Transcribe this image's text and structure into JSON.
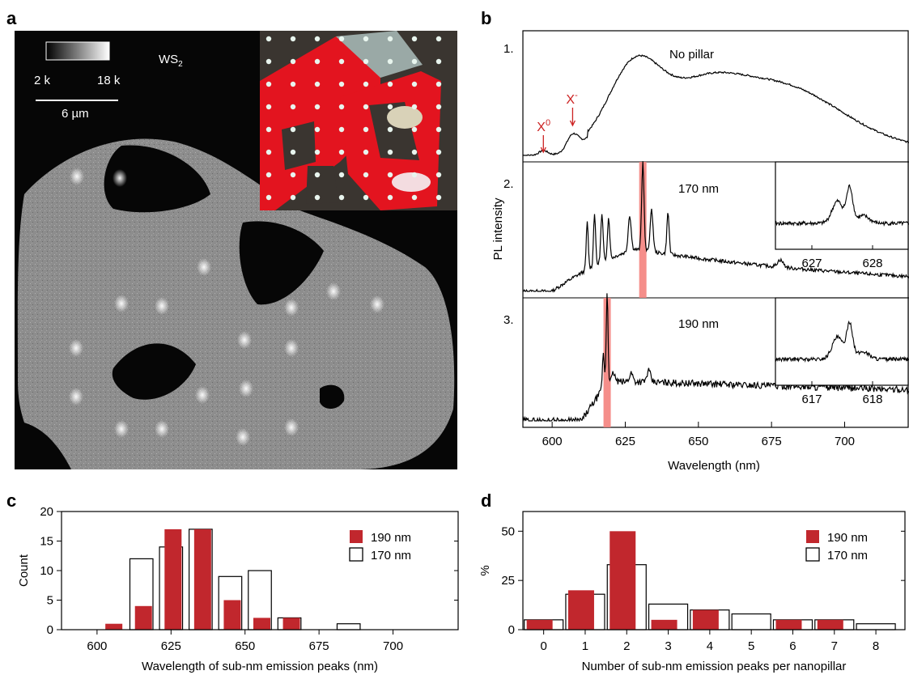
{
  "panel_labels": {
    "a": "a",
    "b": "b",
    "c": "c",
    "d": "d"
  },
  "panel_a": {
    "material": "WS",
    "material_subscript": "2",
    "colorbar_min": "2 k",
    "colorbar_max": "18 k",
    "scale_bar": "6 µm"
  },
  "panel_b": {
    "ylabel": "PL intensity",
    "xlabel": "Wavelength (nm)",
    "x_ticks": [
      600,
      625,
      650,
      675,
      700
    ],
    "xlim": [
      590,
      722
    ],
    "spectra": [
      {
        "index": "1.",
        "label": "No pillar",
        "peaks": [
          {
            "text": "X",
            "sup": "0"
          },
          {
            "text": "X",
            "sup": "-"
          }
        ]
      },
      {
        "index": "2.",
        "label": "170 nm",
        "highlight_nm": 631,
        "inset": {
          "xlim": [
            626.4,
            628.6
          ],
          "ticks": [
            "627",
            "628"
          ]
        }
      },
      {
        "index": "3.",
        "label": "190 nm",
        "highlight_nm": 618.8,
        "inset": {
          "xlim": [
            616.4,
            618.6
          ],
          "ticks": [
            "617",
            "618"
          ]
        }
      }
    ],
    "highlight_color": "#f4827d"
  },
  "colors": {
    "red": "#c1272d",
    "annotation_red": "#cc2222"
  },
  "chart_data": [
    {
      "type": "bar",
      "panel": "c",
      "xlabel": "Wavelength of sub-nm emission peaks (nm)",
      "ylabel": "Count",
      "xlim": [
        588,
        722
      ],
      "ylim": [
        0,
        20
      ],
      "x_ticks": [
        600,
        625,
        650,
        675,
        700
      ],
      "y_ticks": [
        0,
        5,
        10,
        15,
        20
      ],
      "bin_width": 10,
      "series": [
        {
          "name": "190 nm",
          "bin_centers": [
            605,
            615,
            625,
            635,
            645,
            655,
            665
          ],
          "values": [
            1,
            4,
            17,
            17,
            5,
            2,
            2
          ]
        },
        {
          "name": "170 nm",
          "bin_centers": [
            615,
            625,
            635,
            645,
            655,
            665,
            685
          ],
          "values": [
            12,
            14,
            17,
            9,
            10,
            2,
            1
          ]
        }
      ],
      "legend": "top-right"
    },
    {
      "type": "bar",
      "panel": "d",
      "xlabel": "Number of sub-nm emission peaks per nanopillar",
      "ylabel": "%",
      "xlim": [
        -0.5,
        8.7
      ],
      "ylim": [
        0,
        60
      ],
      "x_ticks": [
        0,
        1,
        2,
        3,
        4,
        5,
        6,
        7,
        8
      ],
      "y_ticks": [
        0,
        25,
        50
      ],
      "series": [
        {
          "name": "190 nm",
          "x": [
            0,
            1,
            2,
            3,
            4,
            5,
            6,
            7,
            8
          ],
          "values": [
            5,
            20,
            50,
            5,
            10,
            0,
            5,
            5,
            0
          ]
        },
        {
          "name": "170 nm",
          "x": [
            0,
            1,
            2,
            3,
            4,
            5,
            6,
            7,
            8
          ],
          "values": [
            5,
            18,
            33,
            13,
            10,
            8,
            5,
            5,
            3
          ]
        }
      ],
      "legend": "top-right"
    }
  ]
}
